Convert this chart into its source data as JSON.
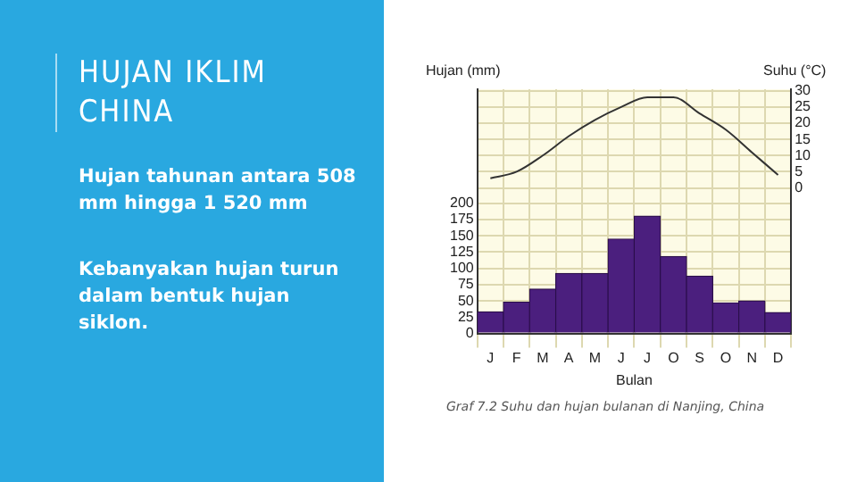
{
  "chart_data": {
    "type": "bar",
    "title": "HUJAN IKLIM CHINA",
    "subtitle": "Graf 7.2 Suhu dan hujan bulanan di Nanjing, China",
    "annotations": [
      "Hujan tahunan antara  508 mm hingga  1  520  mm",
      "Kebanyakan hujan turun  dalam bentuk hujan siklon."
    ],
    "xlabel": "Bulan",
    "ylabel": "Hujan (mm)",
    "y2label": "Suhu (°C)",
    "categories": [
      "J",
      "F",
      "M",
      "A",
      "M",
      "J",
      "J",
      "O",
      "S",
      "O",
      "N",
      "D"
    ],
    "series": [
      {
        "color": "#4b1f7e",
        "values": [
          33,
          48,
          68,
          92,
          92,
          145,
          180,
          118,
          88,
          47,
          50,
          32
        ]
      },
      {
        "type": "line",
        "axis": "y2",
        "color": "#333333",
        "values": [
          3,
          5,
          10,
          16,
          21,
          25,
          28,
          28,
          23,
          18,
          11,
          4
        ]
      }
    ],
    "ylim": [
      0,
      375
    ],
    "yticks": [
      0,
      25,
      50,
      75,
      100,
      125,
      150,
      175,
      200
    ],
    "y2lim": [
      -45,
      30.5
    ],
    "y2ticks": [
      0,
      5,
      10,
      15,
      20,
      25,
      30
    ],
    "grid": true,
    "marker": "none",
    "legend": false
  }
}
